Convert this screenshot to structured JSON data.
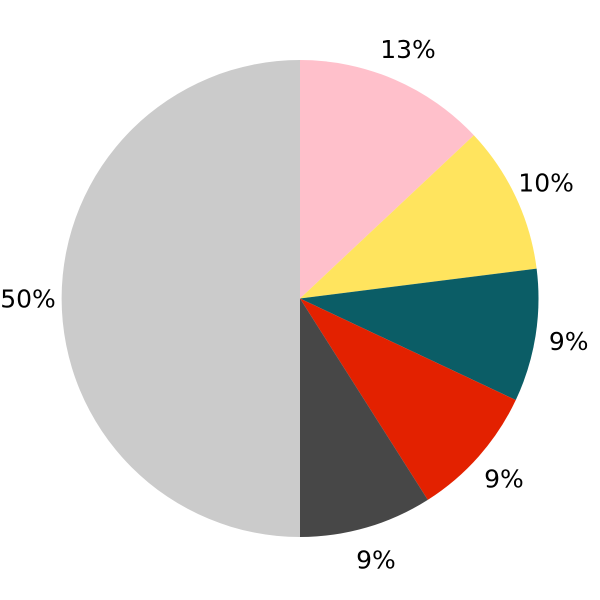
{
  "figure": {
    "background_color": "#ffffff",
    "label_color": "#000000"
  },
  "chart_data": {
    "type": "pie",
    "title": "",
    "legend_position": "none",
    "start_angle_deg": 90,
    "direction": "clockwise",
    "labels_outside": true,
    "slices": [
      {
        "label": "13%",
        "value": 13,
        "color": "#ffc0cb"
      },
      {
        "label": "10%",
        "value": 10,
        "color": "#ffe45e"
      },
      {
        "label": "9%",
        "value": 9,
        "color": "#0b5d66"
      },
      {
        "label": "9%",
        "value": 9,
        "color": "#e32100"
      },
      {
        "label": "9%",
        "value": 9,
        "color": "#474747"
      },
      {
        "label": "50%",
        "value": 50,
        "color": "#cbcbcb"
      }
    ]
  }
}
